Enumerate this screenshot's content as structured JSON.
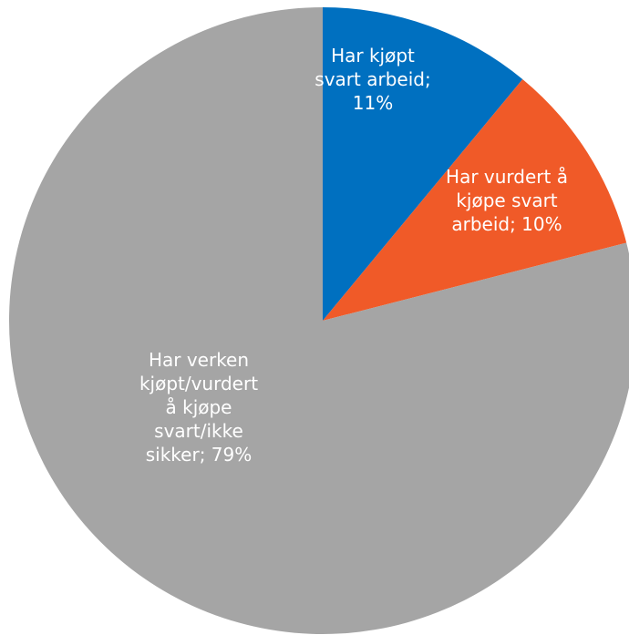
{
  "chart_data": {
    "type": "pie",
    "start_angle": "12 o'clock",
    "direction": "clockwise",
    "slices": [
      {
        "name": "Har kjøpt svart arbeid",
        "value": 11,
        "value_label": "11%",
        "color": "#0070c0",
        "label_lines": [
          "Har kjøpt",
          "svart arbeid;",
          "11%"
        ]
      },
      {
        "name": "Har vurdert å kjøpe svart arbeid",
        "value": 10,
        "value_label": "10%",
        "color": "#f05a28",
        "label_lines": [
          "Har vurdert å",
          "kjøpe svart",
          "arbeid; 10%"
        ]
      },
      {
        "name": "Har verken kjøpt/vurdert å kjøpe svart/ikke sikker",
        "value": 79,
        "value_label": "79%",
        "color": "#a5a5a5",
        "label_lines": [
          "Har verken",
          "kjøpt/vurdert",
          "å kjøpe",
          "svart/ikke",
          "sikker; 79%"
        ]
      }
    ]
  }
}
